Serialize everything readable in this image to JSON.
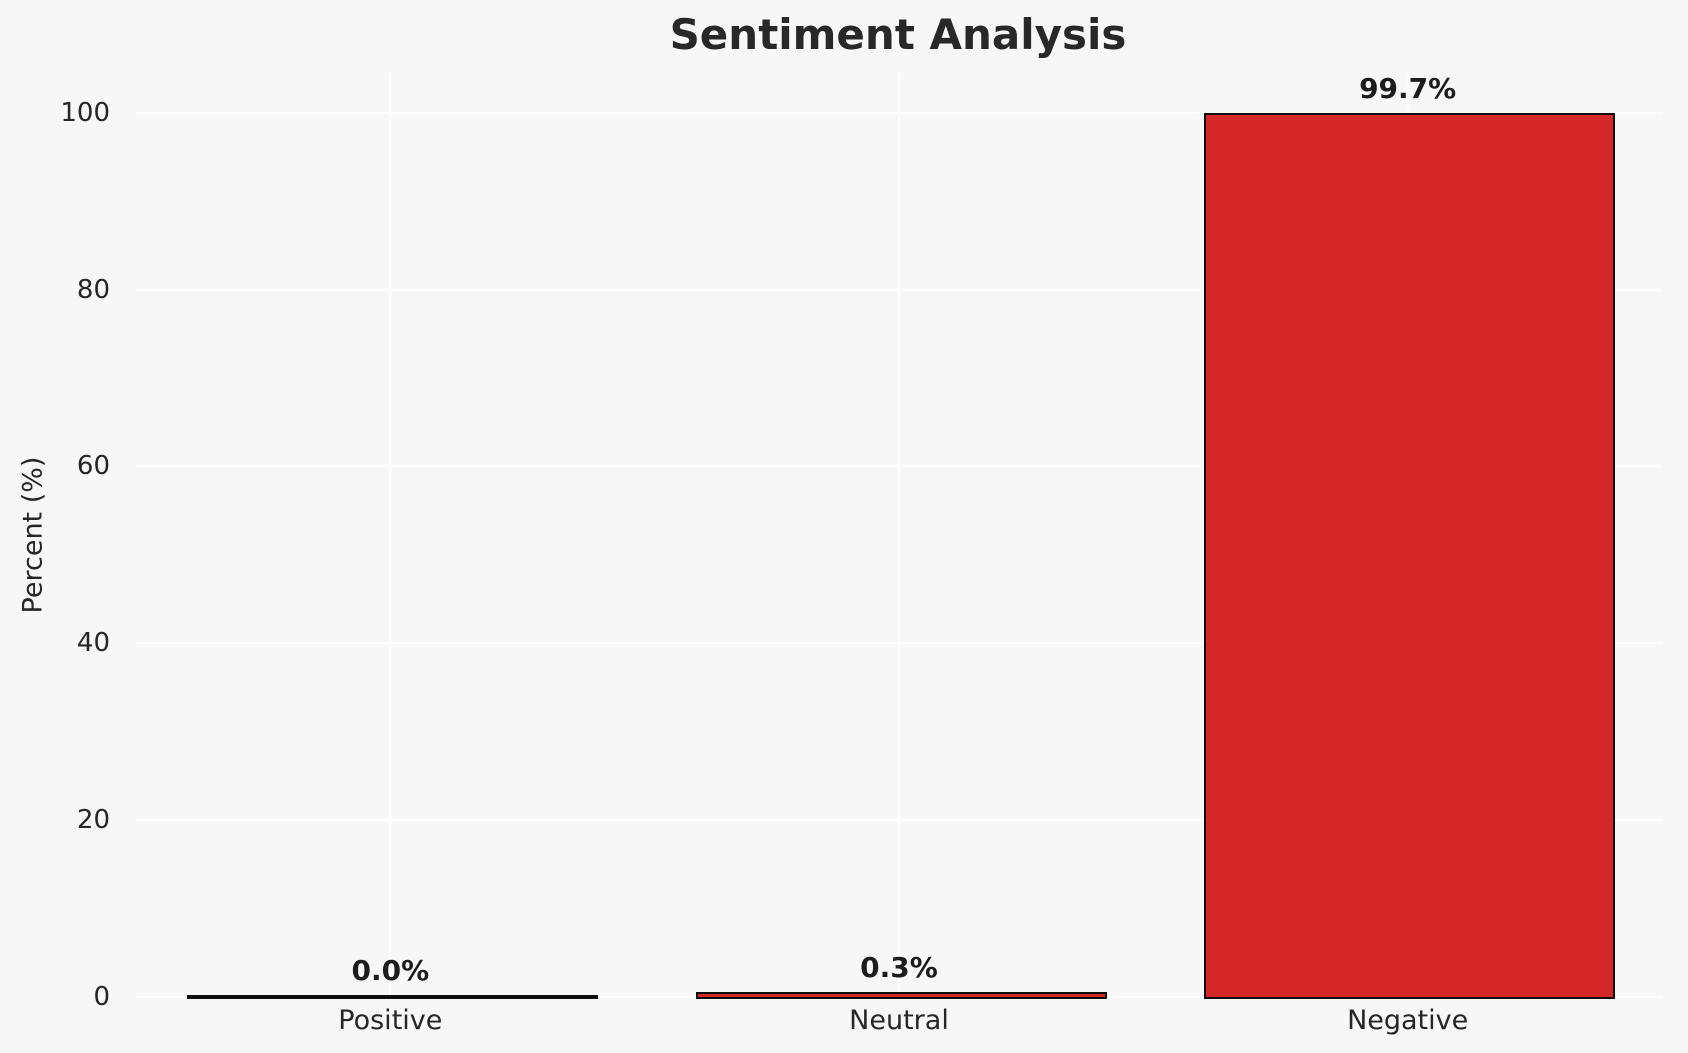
{
  "page": {
    "background_color": "#f7f7f8"
  },
  "chart_data": {
    "type": "bar",
    "title": "Sentiment Analysis",
    "xlabel": "",
    "ylabel": "Percent (%)",
    "categories": [
      "Positive",
      "Neutral",
      "Negative"
    ],
    "values": [
      0.0,
      0.3,
      99.7
    ],
    "bar_labels": [
      "0.0%",
      "0.3%",
      "99.7%"
    ],
    "yticks": [
      0,
      20,
      40,
      60,
      80,
      100
    ],
    "ylim": [
      0,
      104.5
    ],
    "grid": true,
    "legend": false,
    "bar_color": "#d62728",
    "bar_edge_color": "#0d0d0d",
    "grid_color": "#ffffff",
    "background_color": "#f7f7f8",
    "text_color": "#262626"
  }
}
